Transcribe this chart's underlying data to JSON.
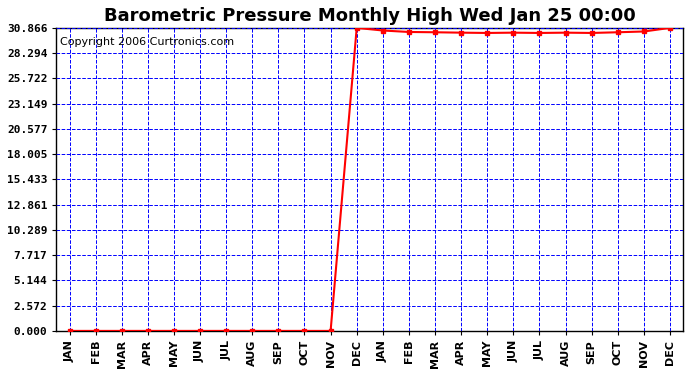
{
  "title": "Barometric Pressure Monthly High Wed Jan 25 00:00",
  "copyright": "Copyright 2006 Curtronics.com",
  "x_labels": [
    "JAN",
    "FEB",
    "MAR",
    "APR",
    "MAY",
    "JUN",
    "JUL",
    "AUG",
    "SEP",
    "OCT",
    "NOV",
    "DEC",
    "JAN",
    "FEB",
    "MAR",
    "APR",
    "MAY",
    "JUN",
    "JUL",
    "AUG",
    "SEP",
    "OCT",
    "NOV",
    "DEC"
  ],
  "y_ticks": [
    0.0,
    2.572,
    5.144,
    7.717,
    10.289,
    12.861,
    15.433,
    18.005,
    20.577,
    23.149,
    25.722,
    28.294,
    30.866
  ],
  "ylim": [
    0.0,
    30.866
  ],
  "y_values": [
    0.0,
    0.0,
    0.0,
    0.0,
    0.0,
    0.0,
    0.0,
    0.0,
    0.0,
    0.0,
    0.0,
    30.866,
    30.6,
    30.45,
    30.42,
    30.38,
    30.35,
    30.38,
    30.35,
    30.38,
    30.35,
    30.42,
    30.5,
    30.866
  ],
  "line_color": "#ff0000",
  "grid_color": "#0000ff",
  "background_color": "#ffffff",
  "title_fontsize": 13,
  "tick_fontsize": 8,
  "copyright_fontsize": 8
}
